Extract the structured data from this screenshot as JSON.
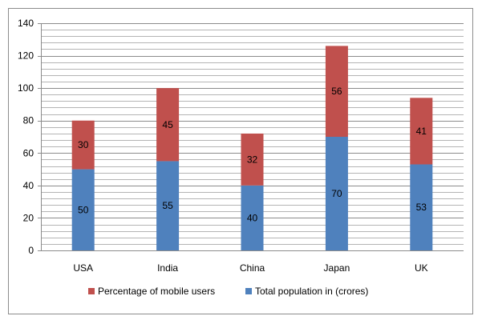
{
  "chart_data": {
    "type": "bar",
    "stacked": true,
    "categories": [
      "USA",
      "India",
      "China",
      "Japan",
      "UK"
    ],
    "series": [
      {
        "name": "Total population  in (crores)",
        "values": [
          50,
          55,
          40,
          70,
          53
        ],
        "color": "#4F81BD"
      },
      {
        "name": "Percentage of mobile users",
        "values": [
          30,
          45,
          32,
          56,
          41
        ],
        "color": "#C0504D"
      }
    ],
    "yticks": [
      "0",
      "20",
      "40",
      "60",
      "80",
      "100",
      "120",
      "140"
    ],
    "ylim": [
      0,
      140
    ],
    "grid": true,
    "legend_position": "bottom",
    "legend_order": [
      1,
      0
    ],
    "title": "",
    "xlabel": "",
    "ylabel": ""
  }
}
